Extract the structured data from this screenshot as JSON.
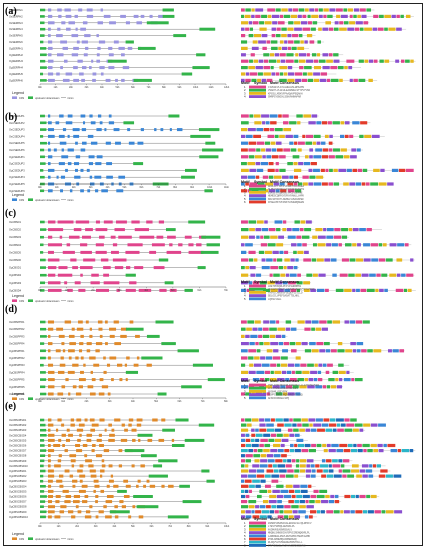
{
  "figure": {
    "colors": {
      "cds_blue": "#3a86d6",
      "cds_lavender": "#9a95e0",
      "cds_magenta": "#e0448c",
      "cds_orange": "#e08a2a",
      "utr_green": "#33b44a",
      "intron": "#555555"
    },
    "panels": [
      {
        "id": "a",
        "label": "(a)",
        "cds_color": "#9a95e0",
        "genes": [
          "OsSERPH1",
          "OsSERPH2",
          "OsSERPH3",
          "OsSERPH4",
          "OsSERPH5",
          "OsSERPH6",
          "OgSERPH1",
          "OgSERPH2",
          "OgSERPH3",
          "OgSERPH4",
          "OgSERPH5",
          "OgSERPH6"
        ],
        "ticks": [
          "0kb",
          "1kb",
          "2kb",
          "3kb",
          "4kb",
          "5kb",
          "6kb",
          "7kb",
          "8kb",
          "9kb",
          "10kb",
          "11kb",
          "12kb"
        ],
        "legend": {
          "title": "Legend",
          "items": [
            "CDS",
            "upstream/ downstream",
            "intron"
          ]
        },
        "motif_header": [
          "Motif",
          "Symbol",
          "Motif Consensus"
        ],
        "motifs": [
          {
            "num": "1",
            "color": "#e0448c",
            "seq": "CIHVGFVLAYLGHHLHSLWPKAMS"
          },
          {
            "num": "2",
            "color": "#33b44a",
            "seq": "VSAKYLVLGFHLEAAMWGLSTYPVYVMA"
          },
          {
            "num": "3",
            "color": "#e6b81f",
            "seq": "KPGSLLMSKVFPAAQAVPEQAKH"
          },
          {
            "num": "4",
            "color": "#8a4fcf",
            "seq": "SMRPSYSNIHLSSHVNHNAPAR"
          }
        ]
      },
      {
        "id": "b",
        "label": "(b)",
        "cds_color": "#3a86d6",
        "genes": [
          "OsCSEDUP1",
          "OsCSEDUP2",
          "OsCSEDUP3",
          "OsCSEDUP4",
          "OsCSEDUP5",
          "OsCSEDUP6",
          "OgCSEDUP1",
          "OgCSEDUP2",
          "OgCSEDUP3",
          "OgCSEDUP4",
          "OgCSEDUP5",
          "OgCSEDUP6"
        ],
        "ticks": [
          "0kb",
          "1kb",
          "2kb",
          "3kb",
          "4kb",
          "5kb",
          "6kb",
          "7kb",
          "8kb",
          "9kb",
          "10kb",
          "11kb"
        ],
        "legend": {
          "title": "Legend",
          "items": [
            "CDS",
            "upstream/ downstream",
            "intron"
          ]
        },
        "motif_header": [
          "Motif",
          "Symbol",
          "Motif Consensus"
        ],
        "motifs": [
          {
            "num": "1",
            "color": "#e0448c",
            "seq": "GKDLLPTIPFIVKSRFYRLKKGEA"
          },
          {
            "num": "2",
            "color": "#33b44a",
            "seq": "NLMVCKSSDKLEDIYKNGKVSSTW"
          },
          {
            "num": "3",
            "color": "#e6b81f",
            "seq": "EIRILVYEQRSSLVPCIVSKFWE"
          },
          {
            "num": "4",
            "color": "#8a4fcf",
            "seq": "HDMESCQRFGYDFKYKANLLVAPK"
          },
          {
            "num": "5",
            "color": "#3a86d6",
            "seq": "KRLSDYIKTLNGMGLVVEIHKPEF"
          },
          {
            "num": "6",
            "color": "#e23b2a",
            "seq": "FPAELMKTVFDSKTLMHGRQKEWS"
          }
        ]
      },
      {
        "id": "c",
        "label": "(c)",
        "cds_color": "#e0448c",
        "genes": [
          "OsCBSD1",
          "OsCBSD2",
          "OsCBSD3",
          "OsCBSD4",
          "OsCBSD5",
          "OsCBSD6",
          "OgCBSD1",
          "OgCBSD2",
          "OgCBSD3",
          "OgCBSD4"
        ],
        "ticks": [
          "0kb",
          "1kb",
          "2kb",
          "3kb",
          "4kb",
          "5kb",
          "6kb",
          "7kb"
        ],
        "legend": {
          "title": "Legend",
          "items": [
            "CDS",
            "upstream/ downstream",
            "intron"
          ]
        },
        "motif_header": [
          "Motif",
          "Symbol",
          "Motif Consensus"
        ],
        "motifs": [
          {
            "num": "1",
            "color": "#e0448c",
            "seq": "LRETPKKQRLPFIVFSHRNMSS"
          },
          {
            "num": "2",
            "color": "#33b44a",
            "seq": "VGASWYGMSHFLLQHHPFHEHAVYGYLPESQ"
          },
          {
            "num": "3",
            "color": "#e6b81f",
            "seq": "YHGVLCNNSKGFSEQGPILVLLD"
          },
          {
            "num": "4",
            "color": "#8a4fcf",
            "seq": "SDLGCLVPEFSASATTSLHKL"
          },
          {
            "num": "5",
            "color": "#3a86d6",
            "seq": "LQKSLVAGL"
          }
        ]
      },
      {
        "id": "d",
        "label": "(d)",
        "cds_color": "#e08a2a",
        "genes": [
          "OsCBSPPR1",
          "OsCBSPPR2",
          "OsCBSPPR3",
          "OsCBSPPR4",
          "OgCBSPPR1",
          "OgCBSPPR2",
          "OgCBSPPR3",
          "OgCBSPPR4",
          "OsCBSPPR5",
          "OgCBSPPR5",
          "OsCBSPPR6"
        ],
        "ticks": [
          "0kb",
          "1kb",
          "2kb",
          "3kb",
          "4kb",
          "5kb",
          "6kb",
          "7kb",
          "8kb"
        ],
        "legend": {
          "title": "Legend",
          "items": [
            "CDS",
            "upstream/ downstream",
            "intron"
          ]
        },
        "motif_header": [
          "Motif",
          "Symbol",
          "Motif Consensus"
        ],
        "motifs": [
          {
            "num": "1",
            "color": "#e0448c",
            "seq": "YSKLIQKFNKCHRLPAEKDFLLLLGIIKSHVVEN"
          },
          {
            "num": "2",
            "color": "#33b44a",
            "seq": "LFVAYEKDLRHHLKNGSLEV"
          },
          {
            "num": "3",
            "color": "#e6b81f",
            "seq": "GKSHMLVSEYFPK"
          },
          {
            "num": "4",
            "color": "#8a4fcf",
            "seq": "SEVFCSDRLEMQSKHVIVTVLNQ"
          },
          {
            "num": "5",
            "color": "#3a86d6",
            "seq": "AFKKIDDNAHLSPQ"
          }
        ]
      },
      {
        "id": "e",
        "label": "(e)",
        "cds_color": "#e08a2a",
        "genes": [
          "OsCBSCBSD1",
          "OsCBSCBSD2",
          "OsCBSCBSD3",
          "OsCBSCBSD4",
          "OsCBSCBSD5",
          "OsCBSCBSD6",
          "OsCBSCBSD7",
          "OsCBSCBSD8",
          "OsCBSCBSD9",
          "OsCBSCBSD10",
          "OgCBSCBSD1",
          "OgCBSCBSD2",
          "OgCBSCBSD3",
          "OgCBSCBSD4",
          "OgCBSCBSD5",
          "OgCBSCBSD6",
          "OgCBSCBSD7",
          "OgCBSCBSD8",
          "OgCBSCBSD9",
          "OgCBSCBSD10"
        ],
        "ticks": [
          "0kb",
          "1kb",
          "2kb",
          "3kb",
          "4kb",
          "5kb",
          "6kb",
          "7kb",
          "8kb",
          "9kb",
          "10kb"
        ],
        "legend": {
          "title": "Legend",
          "items": [
            "CDS",
            "upstream/ downstream",
            "intron"
          ]
        },
        "motif_header": [
          "Motif",
          "Symbol",
          "Motif Consensus"
        ],
        "motifs": [
          {
            "num": "1",
            "color": "#e0448c",
            "seq": "GSSRFVPEPHAVALEDGSLSLCQLRPFFV"
          },
          {
            "num": "2",
            "color": "#33b44a",
            "seq": "LTEVYSPRQLGESSKLPL"
          },
          {
            "num": "3",
            "color": "#e6b81f",
            "seq": "AVDMVKEAGNRSGALV"
          },
          {
            "num": "4",
            "color": "#8a4fcf",
            "seq": "MHQNLSHNGKIHVSPVSIRENQKHRLPL"
          },
          {
            "num": "5",
            "color": "#3a86d6",
            "seq": "LARRNHGLRSVLRGTEPRATSHPFGAMD"
          },
          {
            "num": "6",
            "color": "#e23b2a",
            "seq": "RYRLAMNEMQLRDMERKAQ"
          },
          {
            "num": "7",
            "color": "#2bb5c9",
            "seq": "RLDQVVHTVNGHDEVRPHTRLLL"
          },
          {
            "num": "8",
            "color": "#1e6bb8",
            "seq": "GTVYEGLSLAAIAVAGSRDGSEVNG"
          }
        ]
      }
    ]
  }
}
